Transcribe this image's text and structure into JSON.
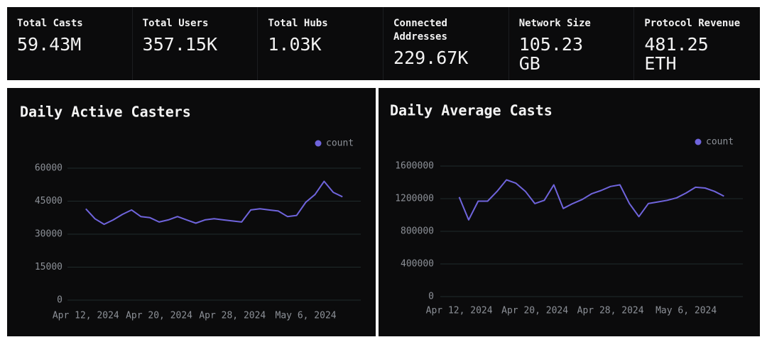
{
  "stats": [
    {
      "label": "Total Casts",
      "value": "59.43M"
    },
    {
      "label": "Total Users",
      "value": "357.15K"
    },
    {
      "label": "Total Hubs",
      "value": "1.03K"
    },
    {
      "label": "Connected Addresses",
      "value": "229.67K"
    },
    {
      "label": "Network Size",
      "value": "105.23 GB"
    },
    {
      "label": "Protocol Revenue",
      "value": "481.25 ETH"
    }
  ],
  "chart_data": [
    {
      "type": "line",
      "title": "Daily Active Casters",
      "x": [
        "2024-04-12",
        "2024-04-13",
        "2024-04-14",
        "2024-04-15",
        "2024-04-16",
        "2024-04-17",
        "2024-04-18",
        "2024-04-19",
        "2024-04-20",
        "2024-04-21",
        "2024-04-22",
        "2024-04-23",
        "2024-04-24",
        "2024-04-25",
        "2024-04-26",
        "2024-04-27",
        "2024-04-28",
        "2024-04-29",
        "2024-04-30",
        "2024-05-01",
        "2024-05-02",
        "2024-05-03",
        "2024-05-04",
        "2024-05-05",
        "2024-05-06",
        "2024-05-07",
        "2024-05-08",
        "2024-05-09",
        "2024-05-10"
      ],
      "series": [
        {
          "name": "count",
          "color": "#6f64dc",
          "values": [
            41500,
            37000,
            34500,
            36500,
            39000,
            41000,
            38000,
            37500,
            35500,
            36500,
            38000,
            36500,
            35000,
            36500,
            37000,
            36500,
            36000,
            35500,
            41000,
            41500,
            41000,
            40500,
            38000,
            38500,
            44500,
            48000,
            54000,
            49000,
            47000
          ]
        }
      ],
      "xlim": [
        "2024-04-10",
        "2024-05-12"
      ],
      "xticks": [
        {
          "value": "2024-04-12",
          "label": "Apr 12, 2024"
        },
        {
          "value": "2024-04-20",
          "label": "Apr 20, 2024"
        },
        {
          "value": "2024-04-28",
          "label": "Apr 28, 2024"
        },
        {
          "value": "2024-05-06",
          "label": "May 6, 2024"
        }
      ],
      "ylim": [
        0,
        60000
      ],
      "yticks": [
        0,
        15000,
        30000,
        45000,
        60000
      ],
      "grid": true,
      "legend": "top-right"
    },
    {
      "type": "line",
      "title": "Daily Average Casts",
      "x": [
        "2024-04-12",
        "2024-04-13",
        "2024-04-14",
        "2024-04-15",
        "2024-04-16",
        "2024-04-17",
        "2024-04-18",
        "2024-04-19",
        "2024-04-20",
        "2024-04-21",
        "2024-04-22",
        "2024-04-23",
        "2024-04-24",
        "2024-04-25",
        "2024-04-26",
        "2024-04-27",
        "2024-04-28",
        "2024-04-29",
        "2024-04-30",
        "2024-05-01",
        "2024-05-02",
        "2024-05-03",
        "2024-05-04",
        "2024-05-05",
        "2024-05-06",
        "2024-05-07",
        "2024-05-08",
        "2024-05-09",
        "2024-05-10"
      ],
      "series": [
        {
          "name": "count",
          "color": "#6f64dc",
          "values": [
            1220000,
            940000,
            1170000,
            1170000,
            1290000,
            1430000,
            1390000,
            1290000,
            1140000,
            1180000,
            1370000,
            1080000,
            1140000,
            1190000,
            1260000,
            1300000,
            1350000,
            1370000,
            1140000,
            980000,
            1140000,
            1160000,
            1180000,
            1210000,
            1270000,
            1340000,
            1330000,
            1290000,
            1230000
          ]
        }
      ],
      "xlim": [
        "2024-04-10",
        "2024-05-12"
      ],
      "xticks": [
        {
          "value": "2024-04-12",
          "label": "Apr 12, 2024"
        },
        {
          "value": "2024-04-20",
          "label": "Apr 20, 2024"
        },
        {
          "value": "2024-04-28",
          "label": "Apr 28, 2024"
        },
        {
          "value": "2024-05-06",
          "label": "May 6, 2024"
        }
      ],
      "ylim": [
        0,
        1600000
      ],
      "yticks": [
        0,
        400000,
        800000,
        1200000,
        1600000
      ],
      "grid": true,
      "legend": "top-right"
    }
  ]
}
